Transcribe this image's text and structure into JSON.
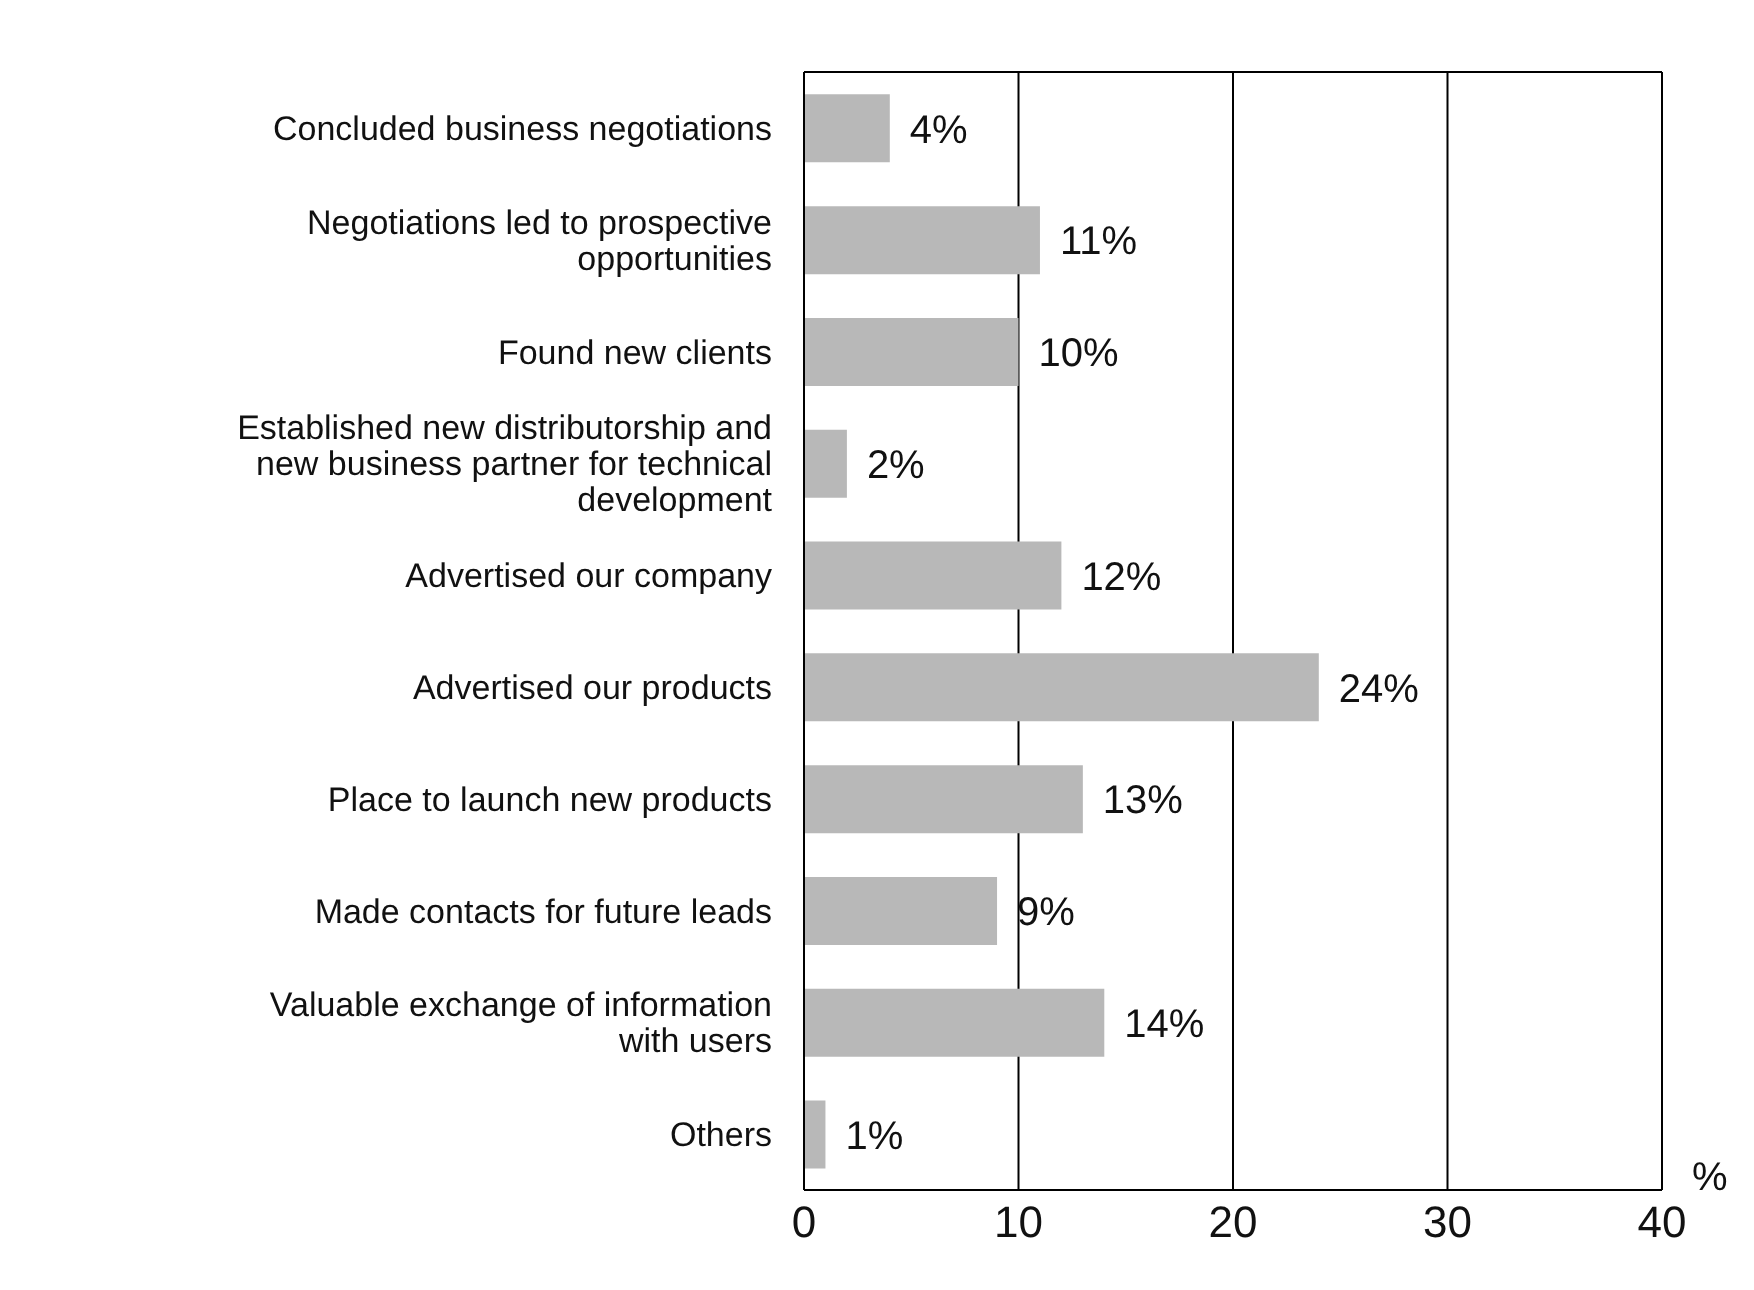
{
  "chart_data": {
    "type": "bar",
    "orientation": "horizontal",
    "categories": [
      "Concluded business negotiations",
      "Negotiations led to prospective opportunities",
      "Found new clients",
      "Established new distributorship and new business partner for technical development",
      "Advertised our company",
      "Advertised our products",
      "Place to launch new products",
      "Made contacts for future leads",
      "Valuable exchange of information with users",
      "Others"
    ],
    "values": [
      4,
      11,
      10,
      2,
      12,
      24,
      13,
      9,
      14,
      1
    ],
    "value_labels": [
      "4%",
      "11%",
      "10%",
      "2%",
      "12%",
      "24%",
      "13%",
      "9%",
      "14%",
      "1%"
    ],
    "color": "#b8b8b8",
    "xlabel": "%",
    "xlim": [
      0,
      40
    ],
    "xticks": [
      0,
      10,
      20,
      30,
      40
    ],
    "grid": "x"
  }
}
